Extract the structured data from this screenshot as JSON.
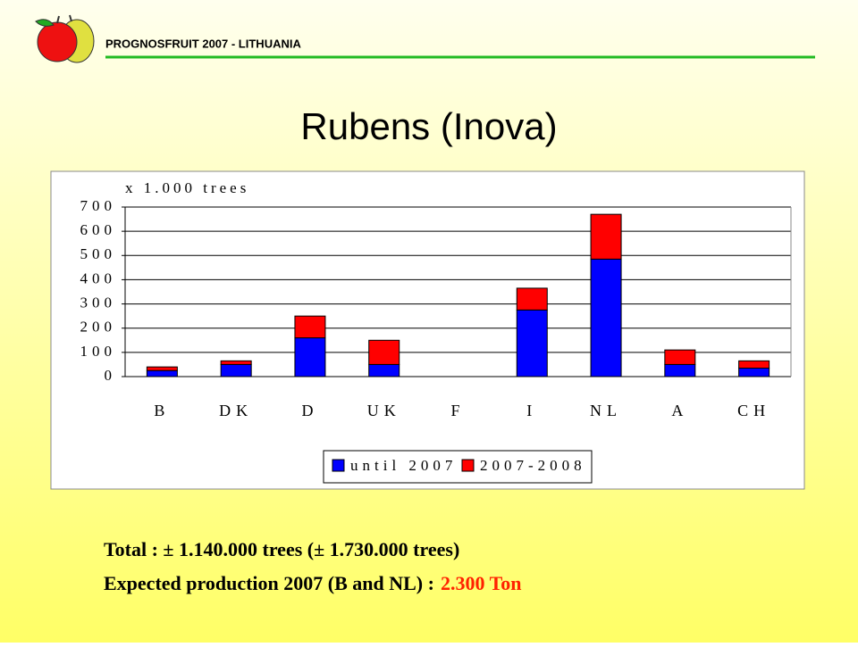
{
  "header": {
    "brand": "PROGNOSFRUIT 2007 - LITHUANIA"
  },
  "chart_data": {
    "type": "stacked_bar",
    "title": "Rubens (Inova)",
    "y_label": "x 1.000 trees",
    "categories": [
      "B",
      "DK",
      "D",
      "UK",
      "F",
      "I",
      "NL",
      "A",
      "CH"
    ],
    "series": [
      {
        "name": "until 2007",
        "color": "#0000ff",
        "values": [
          25,
          50,
          160,
          50,
          0,
          275,
          485,
          50,
          35
        ]
      },
      {
        "name": "2007-2008",
        "color": "#ff0000",
        "values": [
          15,
          15,
          90,
          100,
          0,
          90,
          185,
          60,
          30
        ]
      }
    ],
    "ylim": [
      0,
      700
    ],
    "yticks": [
      0,
      100,
      200,
      300,
      400,
      500,
      600,
      700
    ],
    "grid": true,
    "legend": "bottom"
  },
  "footer": {
    "line1": "Total : ± 1.140.000 trees (± 1.730.000 trees)",
    "line2": "Expected production 2007 (B and NL) :",
    "line2_highlight": "2.300 Ton"
  }
}
